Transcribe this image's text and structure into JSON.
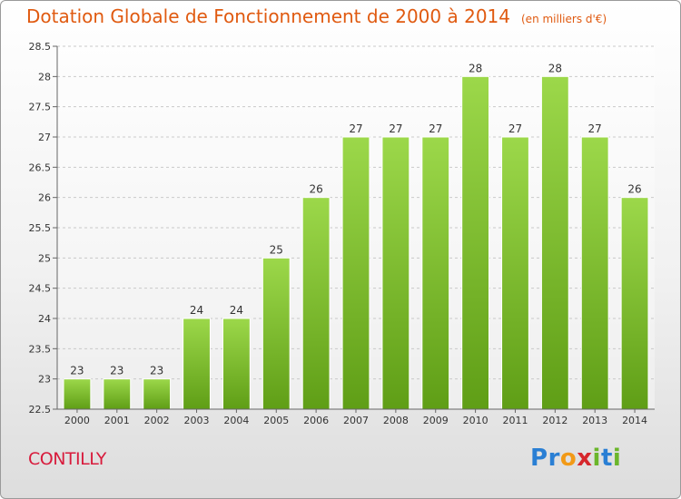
{
  "title": "Dotation Globale de Fonctionnement de 2000 à 2014",
  "unit": "(en milliers d'€)",
  "commune": "CONTILLY",
  "logo": {
    "text": "Proxiti"
  },
  "colors": {
    "bar": "#7cbf2a",
    "bar_light": "#9cd84a",
    "title": "#e05a10",
    "commune": "#d81b3c"
  },
  "chart_data": {
    "type": "bar",
    "title": "Dotation Globale de Fonctionnement de 2000 à 2014",
    "subtitle": "(en milliers d'€)",
    "categories": [
      "2000",
      "2001",
      "2002",
      "2003",
      "2004",
      "2005",
      "2006",
      "2007",
      "2008",
      "2009",
      "2010",
      "2011",
      "2012",
      "2013",
      "2014"
    ],
    "values": [
      23,
      23,
      23,
      24,
      24,
      25,
      26,
      27,
      27,
      27,
      28,
      27,
      28,
      27,
      26
    ],
    "ylim": [
      22.5,
      28.5
    ],
    "yticks": [
      "22.5",
      "23",
      "23.5",
      "24",
      "24.5",
      "25",
      "25.5",
      "26",
      "26.5",
      "27",
      "27.5",
      "28",
      "28.5"
    ],
    "grid": true,
    "xlabel": "",
    "ylabel": ""
  }
}
